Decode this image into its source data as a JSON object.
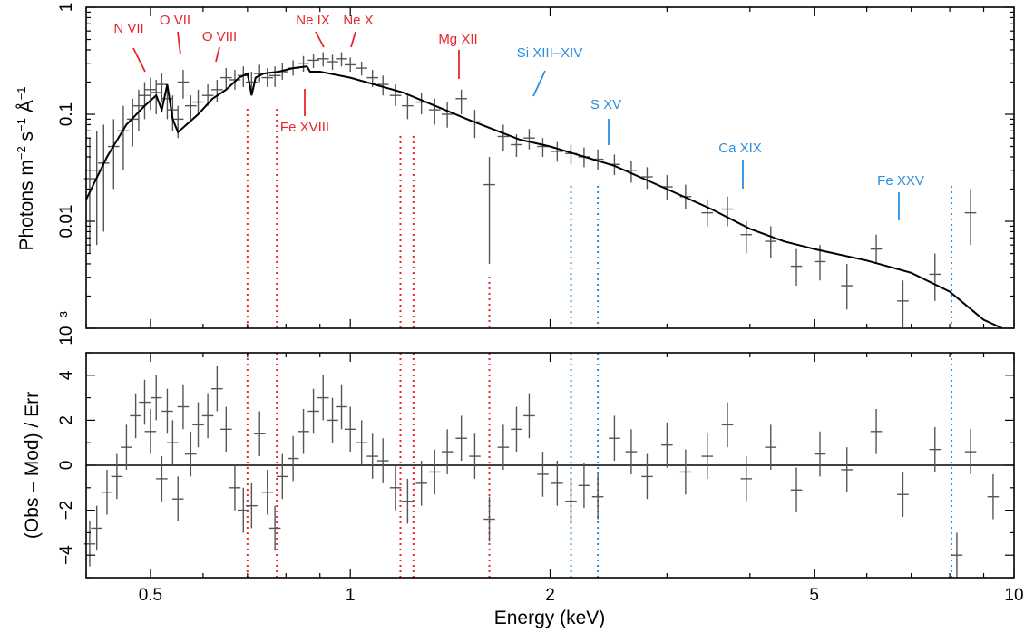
{
  "chart_data": [
    {
      "type": "line",
      "panel": "spectrum",
      "xlabel": "Energy (keV)",
      "ylabel": "Photons m^-2 s^-1 Å^-1",
      "xscale": "log",
      "yscale": "log",
      "xlim": [
        0.4,
        10
      ],
      "ylim": [
        0.001,
        1
      ],
      "x_ticks": [
        {
          "v": 0.5,
          "label": "0.5"
        },
        {
          "v": 1,
          "label": "1"
        },
        {
          "v": 2,
          "label": "2"
        },
        {
          "v": 5,
          "label": "5"
        },
        {
          "v": 10,
          "label": "10"
        }
      ],
      "y_ticks": [
        {
          "v": 1,
          "label": "1"
        },
        {
          "v": 0.1,
          "label": "0.1"
        },
        {
          "v": 0.01,
          "label": "0.01"
        },
        {
          "v": 0.001,
          "label": "10⁻³"
        }
      ],
      "line_colors": {
        "red": "#e8262a",
        "blue": "#2a8ee0",
        "data": "#555555",
        "model": "#000000"
      },
      "annotations": [
        {
          "label": "N VII",
          "color": "red"
        },
        {
          "label": "O VII",
          "color": "red"
        },
        {
          "label": "O VIII",
          "color": "red"
        },
        {
          "label": "Ne IX",
          "color": "red"
        },
        {
          "label": "Ne X",
          "color": "red"
        },
        {
          "label": "Fe XVIII",
          "color": "red"
        },
        {
          "label": "Mg XII",
          "color": "red"
        },
        {
          "label": "Si XIII–XIV",
          "color": "blue"
        },
        {
          "label": "S XV",
          "color": "blue"
        },
        {
          "label": "Ca XIX",
          "color": "blue"
        },
        {
          "label": "Fe XXV",
          "color": "blue"
        }
      ],
      "vertical_lines": [
        {
          "x": 0.7,
          "color": "red"
        },
        {
          "x": 0.775,
          "color": "red"
        },
        {
          "x": 1.19,
          "color": "red"
        },
        {
          "x": 1.245,
          "color": "red"
        },
        {
          "x": 1.62,
          "color": "red"
        },
        {
          "x": 2.15,
          "color": "blue"
        },
        {
          "x": 2.36,
          "color": "blue"
        },
        {
          "x": 8.05,
          "color": "blue"
        }
      ],
      "model": {
        "x": [
          0.4,
          0.43,
          0.46,
          0.49,
          0.51,
          0.52,
          0.53,
          0.54,
          0.55,
          0.56,
          0.59,
          0.62,
          0.65,
          0.68,
          0.7,
          0.71,
          0.72,
          0.74,
          0.78,
          0.82,
          0.86,
          0.87,
          0.9,
          1.0,
          1.2,
          1.5,
          1.8,
          2.0,
          2.5,
          3.0,
          3.5,
          4.0,
          4.5,
          5.0,
          6.0,
          7.0,
          8.0,
          9.0,
          9.6
        ],
        "y": [
          0.016,
          0.04,
          0.08,
          0.12,
          0.15,
          0.11,
          0.19,
          0.09,
          0.068,
          0.075,
          0.1,
          0.14,
          0.17,
          0.22,
          0.24,
          0.15,
          0.22,
          0.24,
          0.25,
          0.27,
          0.28,
          0.25,
          0.25,
          0.22,
          0.16,
          0.09,
          0.058,
          0.05,
          0.033,
          0.02,
          0.013,
          0.0085,
          0.0065,
          0.0055,
          0.0043,
          0.0033,
          0.0022,
          0.0012,
          0.001
        ]
      },
      "points": [
        {
          "x": 0.405,
          "y": 0.025,
          "yl": 0.005,
          "yh": 0.06
        },
        {
          "x": 0.415,
          "y": 0.03,
          "yl": 0.006,
          "yh": 0.07
        },
        {
          "x": 0.425,
          "y": 0.035,
          "yl": 0.008,
          "yh": 0.08
        },
        {
          "x": 0.44,
          "y": 0.05,
          "yl": 0.02,
          "yh": 0.09
        },
        {
          "x": 0.455,
          "y": 0.07,
          "yl": 0.03,
          "yh": 0.12
        },
        {
          "x": 0.47,
          "y": 0.09,
          "yl": 0.05,
          "yh": 0.14
        },
        {
          "x": 0.48,
          "y": 0.12,
          "yl": 0.07,
          "yh": 0.17
        },
        {
          "x": 0.49,
          "y": 0.15,
          "yl": 0.09,
          "yh": 0.2
        },
        {
          "x": 0.5,
          "y": 0.17,
          "yl": 0.11,
          "yh": 0.22
        },
        {
          "x": 0.51,
          "y": 0.16,
          "yl": 0.1,
          "yh": 0.21
        },
        {
          "x": 0.52,
          "y": 0.19,
          "yl": 0.13,
          "yh": 0.24
        },
        {
          "x": 0.53,
          "y": 0.14,
          "yl": 0.09,
          "yh": 0.19
        },
        {
          "x": 0.54,
          "y": 0.11,
          "yl": 0.07,
          "yh": 0.15
        },
        {
          "x": 0.55,
          "y": 0.09,
          "yl": 0.06,
          "yh": 0.12
        },
        {
          "x": 0.56,
          "y": 0.2,
          "yl": 0.14,
          "yh": 0.26
        },
        {
          "x": 0.575,
          "y": 0.12,
          "yl": 0.09,
          "yh": 0.15
        },
        {
          "x": 0.59,
          "y": 0.13,
          "yl": 0.1,
          "yh": 0.17
        },
        {
          "x": 0.61,
          "y": 0.15,
          "yl": 0.12,
          "yh": 0.19
        },
        {
          "x": 0.63,
          "y": 0.17,
          "yl": 0.13,
          "yh": 0.21
        },
        {
          "x": 0.65,
          "y": 0.22,
          "yl": 0.17,
          "yh": 0.27
        },
        {
          "x": 0.67,
          "y": 0.21,
          "yl": 0.17,
          "yh": 0.26
        },
        {
          "x": 0.69,
          "y": 0.23,
          "yl": 0.18,
          "yh": 0.28
        },
        {
          "x": 0.71,
          "y": 0.2,
          "yl": 0.16,
          "yh": 0.25
        },
        {
          "x": 0.73,
          "y": 0.24,
          "yl": 0.2,
          "yh": 0.29
        },
        {
          "x": 0.75,
          "y": 0.22,
          "yl": 0.18,
          "yh": 0.27
        },
        {
          "x": 0.77,
          "y": 0.23,
          "yl": 0.18,
          "yh": 0.28
        },
        {
          "x": 0.79,
          "y": 0.25,
          "yl": 0.21,
          "yh": 0.3
        },
        {
          "x": 0.82,
          "y": 0.27,
          "yl": 0.23,
          "yh": 0.32
        },
        {
          "x": 0.85,
          "y": 0.3,
          "yl": 0.25,
          "yh": 0.35
        },
        {
          "x": 0.88,
          "y": 0.32,
          "yl": 0.27,
          "yh": 0.37
        },
        {
          "x": 0.91,
          "y": 0.33,
          "yl": 0.28,
          "yh": 0.38
        },
        {
          "x": 0.94,
          "y": 0.31,
          "yl": 0.26,
          "yh": 0.36
        },
        {
          "x": 0.97,
          "y": 0.33,
          "yl": 0.28,
          "yh": 0.38
        },
        {
          "x": 1.0,
          "y": 0.29,
          "yl": 0.25,
          "yh": 0.34
        },
        {
          "x": 1.04,
          "y": 0.27,
          "yl": 0.23,
          "yh": 0.31
        },
        {
          "x": 1.08,
          "y": 0.22,
          "yl": 0.18,
          "yh": 0.26
        },
        {
          "x": 1.12,
          "y": 0.19,
          "yl": 0.15,
          "yh": 0.23
        },
        {
          "x": 1.17,
          "y": 0.15,
          "yl": 0.12,
          "yh": 0.19
        },
        {
          "x": 1.22,
          "y": 0.12,
          "yl": 0.09,
          "yh": 0.15
        },
        {
          "x": 1.28,
          "y": 0.13,
          "yl": 0.1,
          "yh": 0.16
        },
        {
          "x": 1.34,
          "y": 0.11,
          "yl": 0.08,
          "yh": 0.14
        },
        {
          "x": 1.4,
          "y": 0.1,
          "yl": 0.075,
          "yh": 0.13
        },
        {
          "x": 1.47,
          "y": 0.14,
          "yl": 0.1,
          "yh": 0.17
        },
        {
          "x": 1.54,
          "y": 0.085,
          "yl": 0.06,
          "yh": 0.11
        },
        {
          "x": 1.62,
          "y": 0.022,
          "yl": 0.004,
          "yh": 0.04
        },
        {
          "x": 1.7,
          "y": 0.062,
          "yl": 0.045,
          "yh": 0.08
        },
        {
          "x": 1.78,
          "y": 0.052,
          "yl": 0.04,
          "yh": 0.065
        },
        {
          "x": 1.86,
          "y": 0.06,
          "yl": 0.047,
          "yh": 0.073
        },
        {
          "x": 1.95,
          "y": 0.05,
          "yl": 0.04,
          "yh": 0.06
        },
        {
          "x": 2.05,
          "y": 0.045,
          "yl": 0.036,
          "yh": 0.055
        },
        {
          "x": 2.15,
          "y": 0.043,
          "yl": 0.034,
          "yh": 0.052
        },
        {
          "x": 2.25,
          "y": 0.04,
          "yl": 0.032,
          "yh": 0.049
        },
        {
          "x": 2.36,
          "y": 0.038,
          "yl": 0.03,
          "yh": 0.047
        },
        {
          "x": 2.5,
          "y": 0.034,
          "yl": 0.027,
          "yh": 0.042
        },
        {
          "x": 2.65,
          "y": 0.03,
          "yl": 0.023,
          "yh": 0.037
        },
        {
          "x": 2.8,
          "y": 0.026,
          "yl": 0.02,
          "yh": 0.032
        },
        {
          "x": 3.0,
          "y": 0.021,
          "yl": 0.016,
          "yh": 0.027
        },
        {
          "x": 3.2,
          "y": 0.017,
          "yl": 0.013,
          "yh": 0.022
        },
        {
          "x": 3.45,
          "y": 0.012,
          "yl": 0.009,
          "yh": 0.016
        },
        {
          "x": 3.7,
          "y": 0.013,
          "yl": 0.009,
          "yh": 0.017
        },
        {
          "x": 3.95,
          "y": 0.0075,
          "yl": 0.005,
          "yh": 0.01
        },
        {
          "x": 4.3,
          "y": 0.0065,
          "yl": 0.0045,
          "yh": 0.009
        },
        {
          "x": 4.7,
          "y": 0.0038,
          "yl": 0.0025,
          "yh": 0.0055
        },
        {
          "x": 5.1,
          "y": 0.0042,
          "yl": 0.0028,
          "yh": 0.006
        },
        {
          "x": 5.6,
          "y": 0.0025,
          "yl": 0.0015,
          "yh": 0.004
        },
        {
          "x": 6.2,
          "y": 0.0055,
          "yl": 0.004,
          "yh": 0.0075
        },
        {
          "x": 6.8,
          "y": 0.0018,
          "yl": 0.001,
          "yh": 0.0028
        },
        {
          "x": 7.6,
          "y": 0.0032,
          "yl": 0.0018,
          "yh": 0.005
        },
        {
          "x": 8.6,
          "y": 0.012,
          "yl": 0.006,
          "yh": 0.02
        }
      ]
    },
    {
      "type": "scatter",
      "panel": "residuals",
      "xlabel": "Energy (keV)",
      "ylabel": "(Obs – Mod) / Err",
      "xscale": "log",
      "xlim": [
        0.4,
        10
      ],
      "ylim": [
        -5,
        5
      ],
      "zero_line": true,
      "x_ticks": [
        {
          "v": 0.5,
          "label": "0.5"
        },
        {
          "v": 1,
          "label": "1"
        },
        {
          "v": 2,
          "label": "2"
        },
        {
          "v": 5,
          "label": "5"
        },
        {
          "v": 10,
          "label": "10"
        }
      ],
      "y_ticks": [
        {
          "v": 4,
          "label": "4"
        },
        {
          "v": 2,
          "label": "2"
        },
        {
          "v": 0,
          "label": "0"
        },
        {
          "v": -2,
          "label": "−2"
        },
        {
          "v": -4,
          "label": "−4"
        }
      ],
      "points": [
        {
          "x": 0.405,
          "y": -3.5
        },
        {
          "x": 0.415,
          "y": -2.8
        },
        {
          "x": 0.43,
          "y": -1.2
        },
        {
          "x": 0.445,
          "y": -0.5
        },
        {
          "x": 0.46,
          "y": 0.8
        },
        {
          "x": 0.475,
          "y": 2.2
        },
        {
          "x": 0.49,
          "y": 2.8
        },
        {
          "x": 0.5,
          "y": 1.5
        },
        {
          "x": 0.51,
          "y": 3.0
        },
        {
          "x": 0.52,
          "y": -0.6
        },
        {
          "x": 0.53,
          "y": 2.4
        },
        {
          "x": 0.54,
          "y": 1.0
        },
        {
          "x": 0.55,
          "y": -1.5
        },
        {
          "x": 0.56,
          "y": 2.6
        },
        {
          "x": 0.575,
          "y": 0.5
        },
        {
          "x": 0.59,
          "y": 1.8
        },
        {
          "x": 0.61,
          "y": 2.2
        },
        {
          "x": 0.63,
          "y": 3.4
        },
        {
          "x": 0.65,
          "y": 1.6
        },
        {
          "x": 0.67,
          "y": -1.0
        },
        {
          "x": 0.69,
          "y": -2.0
        },
        {
          "x": 0.71,
          "y": -1.8
        },
        {
          "x": 0.73,
          "y": 1.4
        },
        {
          "x": 0.75,
          "y": -1.2
        },
        {
          "x": 0.77,
          "y": -2.8
        },
        {
          "x": 0.79,
          "y": -0.5
        },
        {
          "x": 0.82,
          "y": 0.3
        },
        {
          "x": 0.85,
          "y": 1.5
        },
        {
          "x": 0.88,
          "y": 2.4
        },
        {
          "x": 0.91,
          "y": 3.0
        },
        {
          "x": 0.94,
          "y": 2.0
        },
        {
          "x": 0.97,
          "y": 2.6
        },
        {
          "x": 1.0,
          "y": 1.6
        },
        {
          "x": 1.04,
          "y": 1.0
        },
        {
          "x": 1.08,
          "y": 0.4
        },
        {
          "x": 1.12,
          "y": 0.2
        },
        {
          "x": 1.17,
          "y": -1.0
        },
        {
          "x": 1.22,
          "y": -1.6
        },
        {
          "x": 1.28,
          "y": -0.8
        },
        {
          "x": 1.34,
          "y": -0.3
        },
        {
          "x": 1.4,
          "y": 0.6
        },
        {
          "x": 1.47,
          "y": 1.2
        },
        {
          "x": 1.54,
          "y": 0.4
        },
        {
          "x": 1.62,
          "y": -2.4
        },
        {
          "x": 1.7,
          "y": 0.8
        },
        {
          "x": 1.78,
          "y": 1.6
        },
        {
          "x": 1.86,
          "y": 2.2
        },
        {
          "x": 1.95,
          "y": -0.4
        },
        {
          "x": 2.05,
          "y": -0.8
        },
        {
          "x": 2.15,
          "y": -1.6
        },
        {
          "x": 2.25,
          "y": -0.9
        },
        {
          "x": 2.36,
          "y": -1.4
        },
        {
          "x": 2.5,
          "y": 1.2
        },
        {
          "x": 2.65,
          "y": 0.6
        },
        {
          "x": 2.8,
          "y": -0.5
        },
        {
          "x": 3.0,
          "y": 0.9
        },
        {
          "x": 3.2,
          "y": -0.3
        },
        {
          "x": 3.45,
          "y": 0.4
        },
        {
          "x": 3.7,
          "y": 1.8
        },
        {
          "x": 3.95,
          "y": -0.6
        },
        {
          "x": 4.3,
          "y": 0.8
        },
        {
          "x": 4.7,
          "y": -1.1
        },
        {
          "x": 5.1,
          "y": 0.5
        },
        {
          "x": 5.6,
          "y": -0.2
        },
        {
          "x": 6.2,
          "y": 1.5
        },
        {
          "x": 6.8,
          "y": -1.3
        },
        {
          "x": 7.6,
          "y": 0.7
        },
        {
          "x": 8.2,
          "y": -4.0
        },
        {
          "x": 8.6,
          "y": 0.6
        },
        {
          "x": 9.3,
          "y": -1.4
        }
      ]
    }
  ]
}
